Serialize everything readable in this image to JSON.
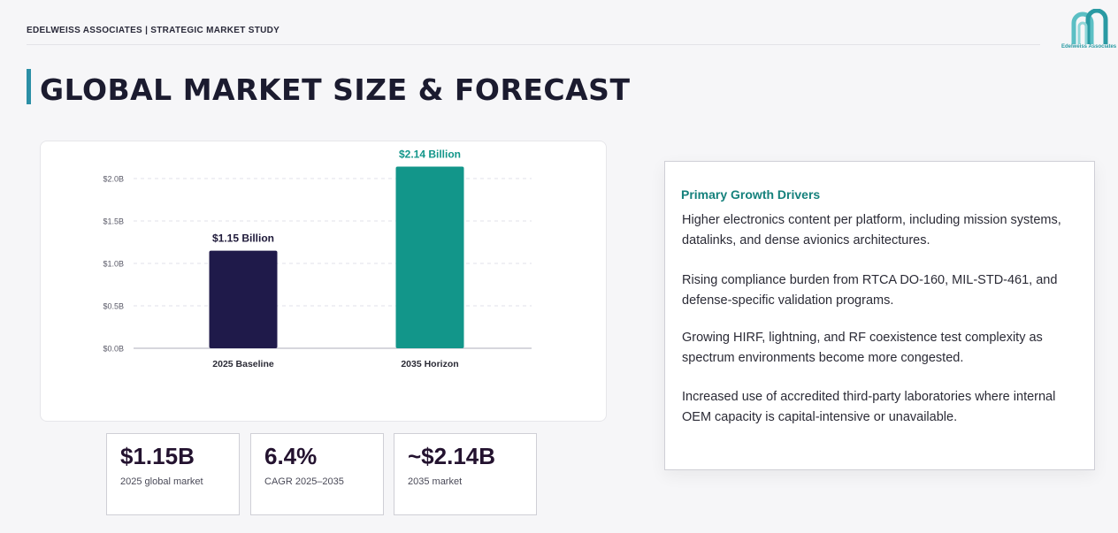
{
  "header": {
    "text": "EDELWEISS ASSOCIATES | STRATEGIC MARKET STUDY",
    "logo_text": "Edelweiss Associates"
  },
  "page_title": "GLOBAL MARKET SIZE & FORECAST",
  "colors": {
    "accent": "#2b8fa6",
    "bar_2025": "#1f1a4a",
    "bar_2035": "#12968a",
    "driver_title": "#15817c"
  },
  "chart_data": {
    "type": "bar",
    "categories": [
      "2025 Baseline",
      "2035 Horizon"
    ],
    "values": [
      1.15,
      2.14
    ],
    "data_labels": [
      "$1.15 Billion",
      "$2.14 Billion"
    ],
    "y_ticks": [
      "$0.0B",
      "$0.5B",
      "$1.0B",
      "$1.5B",
      "$2.0B"
    ],
    "y_tick_values": [
      0,
      0.5,
      1.0,
      1.5,
      2.0
    ],
    "ylim": [
      0,
      2.0
    ],
    "grid": true
  },
  "kpis": [
    {
      "value": "$1.15B",
      "label": "2025 global market"
    },
    {
      "value": "6.4%",
      "label": "CAGR 2025–2035"
    },
    {
      "value": "~$2.14B",
      "label": "2035 market"
    }
  ],
  "drivers": {
    "title": "Primary Growth Drivers",
    "items": [
      "Higher electronics content per platform, including mission systems, datalinks, and dense avionics architectures.",
      "Rising compliance burden from RTCA DO-160, MIL-STD-461, and defense-specific validation programs.",
      "Growing HIRF, lightning, and RF coexistence test complexity as spectrum environments become more congested.",
      "Increased use of accredited third-party laboratories where internal OEM capacity is capital-intensive or unavailable."
    ]
  }
}
